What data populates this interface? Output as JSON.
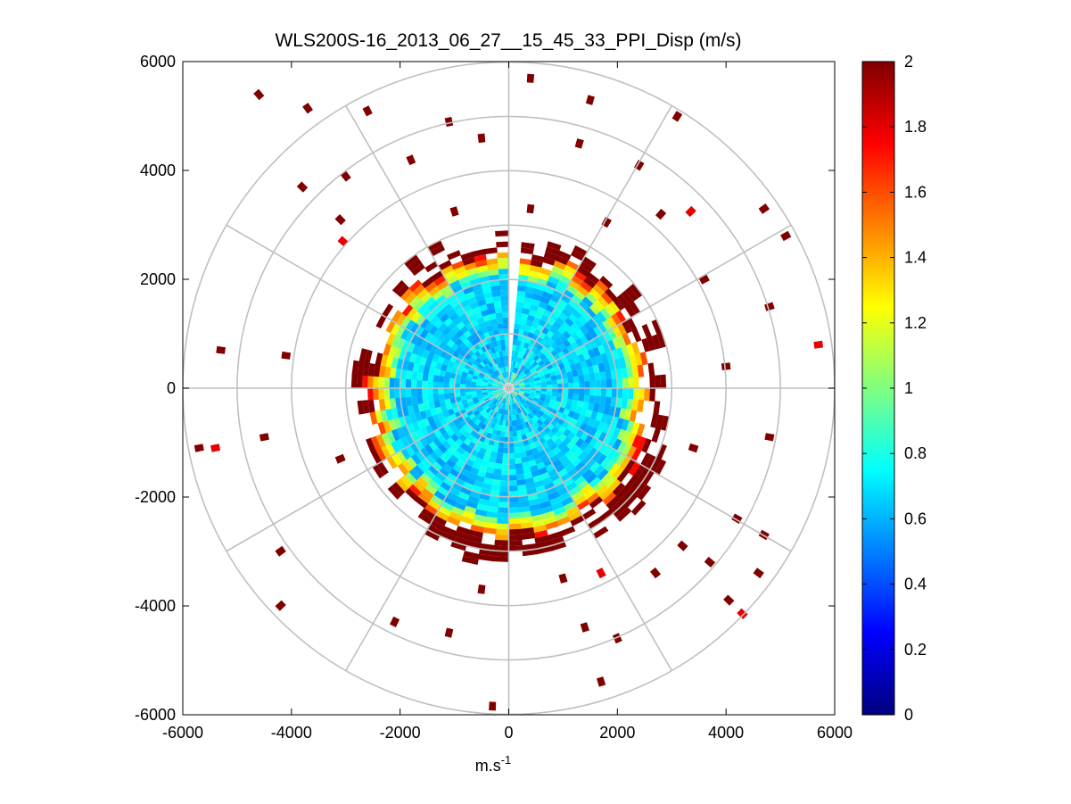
{
  "chart_data": {
    "type": "polar-ppi-heatmap",
    "title": "WLS200S-16_2013_06_27__15_45_33_PPI_Disp (m/s)",
    "xlabel": "m.s",
    "xlabel_superscript": "-1",
    "ylabel": "",
    "xlim": [
      -6000,
      6000
    ],
    "ylim": [
      -6000,
      6000
    ],
    "x_ticks": [
      "-6000",
      "-4000",
      "-2000",
      "0",
      "2000",
      "4000",
      "6000"
    ],
    "y_ticks": [
      "6000",
      "4000",
      "2000",
      "0",
      "-2000",
      "-4000",
      "-6000"
    ],
    "x_tick_values": [
      -6000,
      -4000,
      -2000,
      0,
      2000,
      4000,
      6000
    ],
    "y_tick_values": [
      6000,
      4000,
      2000,
      0,
      -2000,
      -4000,
      -6000
    ],
    "polar_grid": {
      "range_rings": [
        1000,
        2000,
        3000,
        4000,
        5000,
        6000
      ],
      "spoke_angles_deg": [
        0,
        30,
        60,
        90,
        120,
        150,
        180,
        210,
        240,
        270,
        300,
        330
      ]
    },
    "colorbar": {
      "colormap": "jet",
      "min": 0,
      "max": 2,
      "tick_values": [
        0,
        0.2,
        0.4,
        0.6,
        0.8,
        1,
        1.2,
        1.4,
        1.6,
        1.8,
        2
      ],
      "tick_labels": [
        "0",
        "0.2",
        "0.4",
        "0.6",
        "0.8",
        "1",
        "1.2",
        "1.4",
        "1.6",
        "1.8",
        "2"
      ],
      "location": "right"
    },
    "dense_region": {
      "center_range_m": 0,
      "core_radius_m": 2000,
      "core_value_range": [
        0.55,
        0.8
      ],
      "rim_outer_radius_m": 2900,
      "rim_value_range": [
        0.9,
        2.0
      ],
      "gap_azimuth_deg": [
        0,
        7
      ],
      "saturated_value": 2.0
    },
    "sparse_returns": [
      {
        "x": -4600,
        "y": 5400,
        "v": 2
      },
      {
        "x": -3700,
        "y": 5150,
        "v": 2
      },
      {
        "x": -2600,
        "y": 5100,
        "v": 2
      },
      {
        "x": -1100,
        "y": 4900,
        "v": 2
      },
      {
        "x": 400,
        "y": 5700,
        "v": 2
      },
      {
        "x": 1500,
        "y": 5300,
        "v": 2
      },
      {
        "x": 3100,
        "y": 5000,
        "v": 2
      },
      {
        "x": -3800,
        "y": 3700,
        "v": 2
      },
      {
        "x": -3000,
        "y": 3900,
        "v": 2
      },
      {
        "x": -1800,
        "y": 4200,
        "v": 2
      },
      {
        "x": -500,
        "y": 4600,
        "v": 2
      },
      {
        "x": 1300,
        "y": 4500,
        "v": 2
      },
      {
        "x": 2400,
        "y": 4100,
        "v": 2
      },
      {
        "x": 4700,
        "y": 3300,
        "v": 2
      },
      {
        "x": 5100,
        "y": 2800,
        "v": 2
      },
      {
        "x": 3350,
        "y": 3250,
        "v": 1.8
      },
      {
        "x": -3100,
        "y": 3100,
        "v": 2
      },
      {
        "x": -3050,
        "y": 2700,
        "v": 1.8
      },
      {
        "x": -1000,
        "y": 3250,
        "v": 2
      },
      {
        "x": 400,
        "y": 3300,
        "v": 2
      },
      {
        "x": 1800,
        "y": 3050,
        "v": 2
      },
      {
        "x": 2800,
        "y": 3200,
        "v": 2
      },
      {
        "x": 3600,
        "y": 2000,
        "v": 2
      },
      {
        "x": 4800,
        "y": 1500,
        "v": 2
      },
      {
        "x": -5300,
        "y": 700,
        "v": 2
      },
      {
        "x": -4100,
        "y": 600,
        "v": 2
      },
      {
        "x": 5700,
        "y": 800,
        "v": 1.8
      },
      {
        "x": 4000,
        "y": 400,
        "v": 2
      },
      {
        "x": -5700,
        "y": -1100,
        "v": 2
      },
      {
        "x": -5400,
        "y": -1100,
        "v": 1.8
      },
      {
        "x": -4500,
        "y": -900,
        "v": 2
      },
      {
        "x": -3100,
        "y": -1300,
        "v": 2
      },
      {
        "x": 4800,
        "y": -900,
        "v": 2
      },
      {
        "x": 3400,
        "y": -1100,
        "v": 2
      },
      {
        "x": -4200,
        "y": -3000,
        "v": 2
      },
      {
        "x": -4200,
        "y": -4000,
        "v": 2
      },
      {
        "x": -2100,
        "y": -4300,
        "v": 2
      },
      {
        "x": -1100,
        "y": -4500,
        "v": 2
      },
      {
        "x": -300,
        "y": -5850,
        "v": 2
      },
      {
        "x": 1400,
        "y": -4400,
        "v": 2
      },
      {
        "x": 2000,
        "y": -4600,
        "v": 2
      },
      {
        "x": 1700,
        "y": -5400,
        "v": 2
      },
      {
        "x": 1000,
        "y": -3500,
        "v": 2
      },
      {
        "x": 1700,
        "y": -3400,
        "v": 1.8
      },
      {
        "x": 3200,
        "y": -2900,
        "v": 2
      },
      {
        "x": 3700,
        "y": -3200,
        "v": 2
      },
      {
        "x": 4200,
        "y": -2400,
        "v": 2
      },
      {
        "x": 4700,
        "y": -2700,
        "v": 2
      },
      {
        "x": 4600,
        "y": -3400,
        "v": 2
      },
      {
        "x": 4300,
        "y": -4150,
        "v": 1.8
      },
      {
        "x": 4050,
        "y": -3900,
        "v": 2
      },
      {
        "x": 2700,
        "y": -3400,
        "v": 2
      },
      {
        "x": -500,
        "y": -3700,
        "v": 2
      }
    ]
  }
}
